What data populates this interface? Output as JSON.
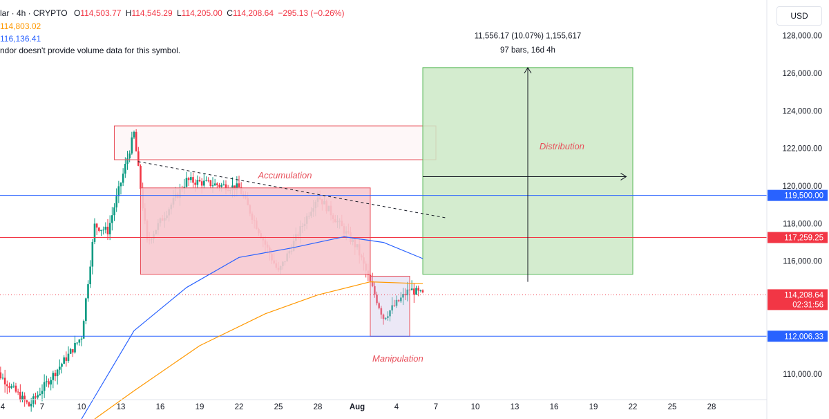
{
  "header": {
    "symbol_prefix": "lar · 4h · CRYPTO",
    "open_label": "O",
    "open": "114,503.77",
    "high_label": "H",
    "high": "114,545.29",
    "low_label": "L",
    "low": "114,205.00",
    "close_label": "C",
    "close": "114,208.64",
    "change": "−295.13 (−0.26%)",
    "ma1": "114,803.02",
    "ma2": "116,136.41",
    "volume_note": "ndor doesn't provide volume data for this symbol."
  },
  "currency_button": "USD",
  "colors": {
    "up": "#089981",
    "down": "#f23645",
    "ma_orange": "#ff9800",
    "ma_blue": "#2962ff",
    "accum_fill": "#f7c9cf",
    "accum_stroke": "#e8505b",
    "dist_fill": "#cde9c7",
    "dist_stroke": "#5ab95a"
  },
  "chart_data": {
    "type": "candlestick",
    "x_tick_labels": [
      "4",
      "7",
      "10",
      "13",
      "16",
      "19",
      "22",
      "25",
      "28",
      "Aug",
      "4",
      "7",
      "10",
      "13",
      "16",
      "19",
      "22",
      "25",
      "28"
    ],
    "y_tick_labels": [
      "110,000.00",
      "112,000.00",
      "114,000.00",
      "116,000.00",
      "118,000.00",
      "120,000.00",
      "122,000.00",
      "124,000.00",
      "126,000.00",
      "128,000.00"
    ],
    "ylim": [
      107600,
      129900
    ],
    "series_key_points": {
      "price_close": [
        {
          "x": "Jul 3",
          "y": 110500
        },
        {
          "x": "Jul 6",
          "y": 108300
        },
        {
          "x": "Jul 9",
          "y": 111000
        },
        {
          "x": "Jul 10",
          "y": 112000
        },
        {
          "x": "Jul 11",
          "y": 117900
        },
        {
          "x": "Jul 12",
          "y": 117600
        },
        {
          "x": "Jul 14",
          "y": 122800
        },
        {
          "x": "Jul 15",
          "y": 117000
        },
        {
          "x": "Jul 18",
          "y": 120300
        },
        {
          "x": "Jul 22",
          "y": 119900
        },
        {
          "x": "Jul 25",
          "y": 115400
        },
        {
          "x": "Jul 28",
          "y": 119500
        },
        {
          "x": "Jul 31",
          "y": 116700
        },
        {
          "x": "Aug 2",
          "y": 113000
        },
        {
          "x": "Aug 4",
          "y": 114500
        },
        {
          "x": "Aug 5",
          "y": 114208.64
        }
      ],
      "ma_blue": [
        {
          "x": "Jul 10",
          "y": 107600
        },
        {
          "x": "Jul 14",
          "y": 112300
        },
        {
          "x": "Jul 18",
          "y": 114600
        },
        {
          "x": "Jul 22",
          "y": 116200
        },
        {
          "x": "Jul 26",
          "y": 116700
        },
        {
          "x": "Jul 30",
          "y": 117300
        },
        {
          "x": "Aug 2",
          "y": 117000
        },
        {
          "x": "Aug 5",
          "y": 116136.41
        }
      ],
      "ma_orange": [
        {
          "x": "Jul 11",
          "y": 107600
        },
        {
          "x": "Jul 14",
          "y": 109100
        },
        {
          "x": "Jul 19",
          "y": 111500
        },
        {
          "x": "Jul 24",
          "y": 113200
        },
        {
          "x": "Jul 28",
          "y": 114200
        },
        {
          "x": "Aug 1",
          "y": 114900
        },
        {
          "x": "Aug 5",
          "y": 114803.02
        }
      ]
    },
    "horizontal_lines": [
      {
        "label": "119,500.00",
        "value": 119500,
        "color": "#2962ff"
      },
      {
        "label": "117,259.25",
        "value": 117259.25,
        "color": "#f23645"
      },
      {
        "label": "112,006.33",
        "value": 112006.33,
        "color": "#2962ff"
      }
    ],
    "current_price": {
      "label": "114,208.64",
      "countdown": "02:31:56",
      "value": 114208.64
    },
    "zones": {
      "supply_box": {
        "x0": "Jul 12.5",
        "x1": "Aug 6",
        "y0": 121400,
        "y1": 123200
      },
      "accumulation_box": {
        "x0": "Jul 14.5",
        "x1": "Aug 1",
        "y0": 115300,
        "y1": 119900
      },
      "manipulation_box": {
        "x0": "Aug 1",
        "x1": "Aug 4",
        "y0": 112000,
        "y1": 115200
      },
      "distribution_box": {
        "x0": "Aug 5",
        "x1": "Aug 21",
        "y0": 115300,
        "y1": 126300
      }
    },
    "annotations": {
      "accumulation": "Accumulation",
      "manipulation": "Manipulation",
      "distribution": "Distribution",
      "measure_line1": "11,556.17 (10.07%) 1,155,617",
      "measure_line2": "97 bars, 16d 4h"
    }
  }
}
